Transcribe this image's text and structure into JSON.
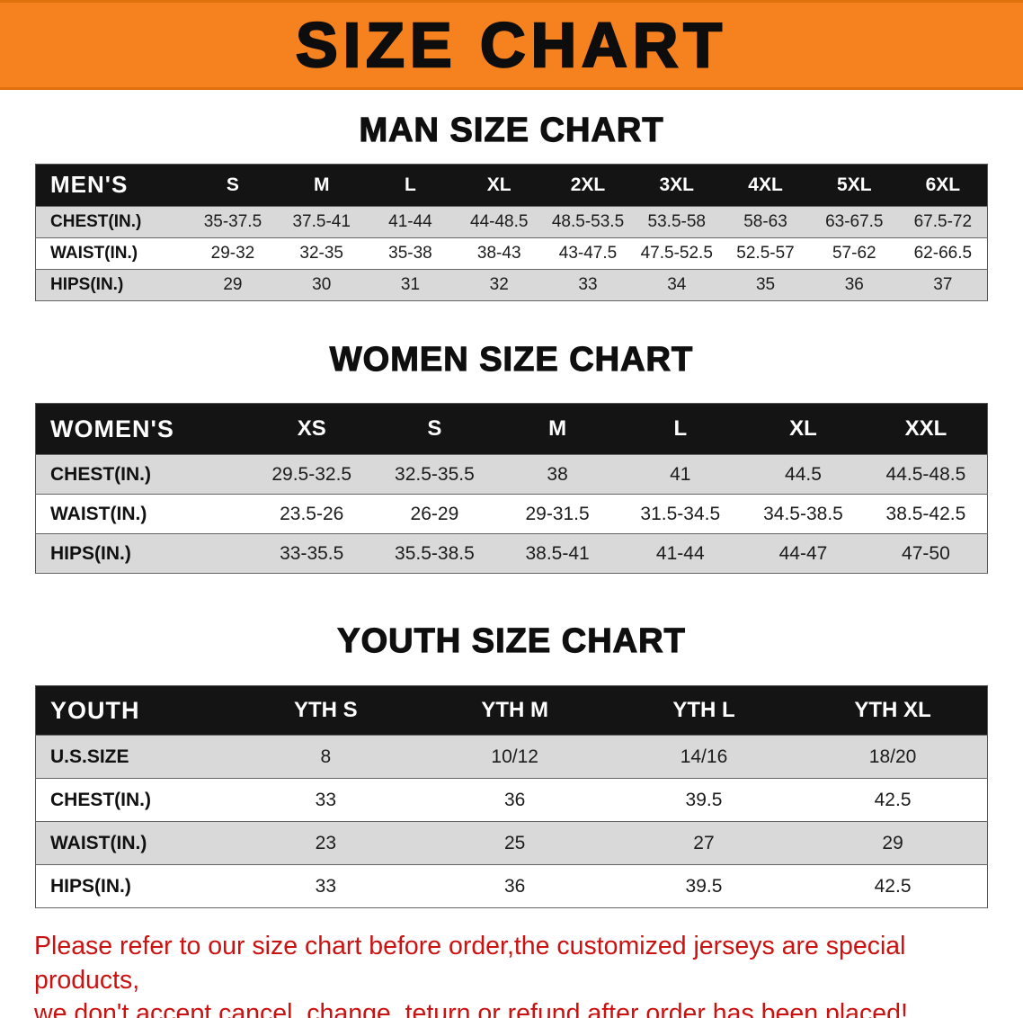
{
  "banner": {
    "title": "SIZE CHART",
    "bg_color": "#f5821f"
  },
  "men": {
    "heading": "MAN SIZE CHART",
    "table": {
      "header": [
        "MEN'S",
        "S",
        "M",
        "L",
        "XL",
        "2XL",
        "3XL",
        "4XL",
        "5XL",
        "6XL"
      ],
      "rows": [
        {
          "label": "CHEST(IN.)",
          "values": [
            "35-37.5",
            "37.5-41",
            "41-44",
            "44-48.5",
            "48.5-53.5",
            "53.5-58",
            "58-63",
            "63-67.5",
            "67.5-72"
          ]
        },
        {
          "label": "WAIST(IN.)",
          "values": [
            "29-32",
            "32-35",
            "35-38",
            "38-43",
            "43-47.5",
            "47.5-52.5",
            "52.5-57",
            "57-62",
            "62-66.5"
          ]
        },
        {
          "label": "HIPS(IN.)",
          "values": [
            "29",
            "30",
            "31",
            "32",
            "33",
            "34",
            "35",
            "36",
            "37"
          ]
        }
      ]
    }
  },
  "women": {
    "heading": "WOMEN SIZE CHART",
    "table": {
      "header": [
        "WOMEN'S",
        "XS",
        "S",
        "M",
        "L",
        "XL",
        "XXL"
      ],
      "rows": [
        {
          "label": "CHEST(IN.)",
          "values": [
            "29.5-32.5",
            "32.5-35.5",
            "38",
            "41",
            "44.5",
            "44.5-48.5"
          ]
        },
        {
          "label": "WAIST(IN.)",
          "values": [
            "23.5-26",
            "26-29",
            "29-31.5",
            "31.5-34.5",
            "34.5-38.5",
            "38.5-42.5"
          ]
        },
        {
          "label": "HIPS(IN.)",
          "values": [
            "33-35.5",
            "35.5-38.5",
            "38.5-41",
            "41-44",
            "44-47",
            "47-50"
          ]
        }
      ]
    }
  },
  "youth": {
    "heading": "YOUTH SIZE CHART",
    "table": {
      "header": [
        "YOUTH",
        "YTH S",
        "YTH M",
        "YTH L",
        "YTH XL"
      ],
      "rows": [
        {
          "label": "U.S.SIZE",
          "values": [
            "8",
            "10/12",
            "14/16",
            "18/20"
          ]
        },
        {
          "label": "CHEST(IN.)",
          "values": [
            "33",
            "36",
            "39.5",
            "42.5"
          ]
        },
        {
          "label": "WAIST(IN.)",
          "values": [
            "23",
            "25",
            "27",
            "29"
          ]
        },
        {
          "label": "HIPS(IN.)",
          "values": [
            "33",
            "36",
            "39.5",
            "42.5"
          ]
        }
      ]
    }
  },
  "disclaimer": {
    "color": "#cc1111",
    "line1": "Please refer to our size chart before order,the customized jerseys are special products,",
    "line2": "we don't accept cancel, change, teturn or refund after order has been placed!"
  }
}
